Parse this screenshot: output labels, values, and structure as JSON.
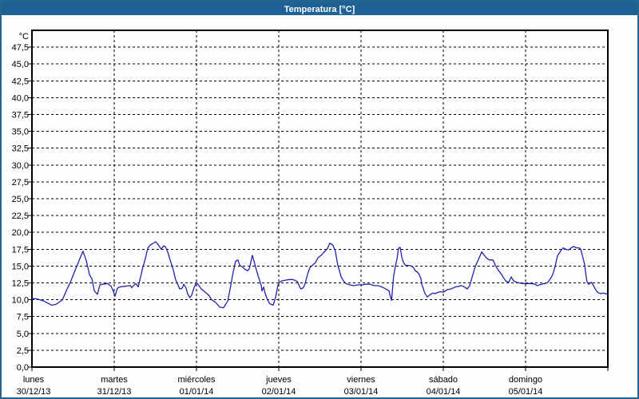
{
  "window": {
    "title": "Temperatura [°C]"
  },
  "colors": {
    "titlebar_bg": "#1e6295",
    "titlebar_text": "#ffffff",
    "window_border": "#266590",
    "background": "#fcfdfc",
    "plot_border": "#000000",
    "gridline": "#000000",
    "tick_label": "#000000",
    "line": "#2323aa"
  },
  "axes": {
    "y_unit_label": "°C",
    "y_max": 50,
    "y_tick_step": 2.5,
    "y_ticks": [
      {
        "v": 0,
        "label": "0,0"
      },
      {
        "v": 2.5,
        "label": "2,5"
      },
      {
        "v": 5,
        "label": "5,0"
      },
      {
        "v": 7.5,
        "label": "7,5"
      },
      {
        "v": 10,
        "label": "10,0"
      },
      {
        "v": 12.5,
        "label": "12,5"
      },
      {
        "v": 15,
        "label": "15,0"
      },
      {
        "v": 17.5,
        "label": "17,5"
      },
      {
        "v": 20,
        "label": "20,0"
      },
      {
        "v": 22.5,
        "label": "22,5"
      },
      {
        "v": 25,
        "label": "25,0"
      },
      {
        "v": 27.5,
        "label": "27,5"
      },
      {
        "v": 30,
        "label": "30,0"
      },
      {
        "v": 32.5,
        "label": "32,5"
      },
      {
        "v": 35,
        "label": "35,0"
      },
      {
        "v": 37.5,
        "label": "37,5"
      },
      {
        "v": 40,
        "label": "40,0"
      },
      {
        "v": 42.5,
        "label": "42,5"
      },
      {
        "v": 45,
        "label": "45,0"
      },
      {
        "v": 47.5,
        "label": "47,5"
      }
    ],
    "x_total_hours": 168,
    "x_days": [
      {
        "name": "lunes",
        "date": "30/12/13",
        "start_hour": 0
      },
      {
        "name": "martes",
        "date": "31/12/13",
        "start_hour": 24
      },
      {
        "name": "miércoles",
        "date": "01/01/14",
        "start_hour": 48
      },
      {
        "name": "jueves",
        "date": "02/01/14",
        "start_hour": 72
      },
      {
        "name": "viernes",
        "date": "03/01/14",
        "start_hour": 96
      },
      {
        "name": "sábado",
        "date": "04/01/14",
        "start_hour": 120
      },
      {
        "name": "domingo",
        "date": "05/01/14",
        "start_hour": 144
      }
    ]
  },
  "chart_data": {
    "type": "line",
    "title": "Temperatura [°C]",
    "ylabel": "°C",
    "ylim": [
      0,
      50
    ],
    "y_gridline_step": 2.5,
    "x_axis": "hours elapsed since lunes 30/12/13 00:00, one tick per day through domingo 05/01/14",
    "grid": true,
    "legend_position": "none",
    "series": [
      {
        "name": "Temperatura",
        "color": "#2323aa",
        "points": [
          [
            0,
            10.2
          ],
          [
            1.6,
            10.1
          ],
          [
            3.5,
            9.8
          ],
          [
            4.6,
            9.5
          ],
          [
            5.8,
            9.2
          ],
          [
            7,
            9.3
          ],
          [
            8.9,
            10.0
          ],
          [
            10,
            11.3
          ],
          [
            11.2,
            12.6
          ],
          [
            12.3,
            14.0
          ],
          [
            13.5,
            15.5
          ],
          [
            14.9,
            17.2
          ],
          [
            15.8,
            15.9
          ],
          [
            16.8,
            13.7
          ],
          [
            17.5,
            13.1
          ],
          [
            18.2,
            11.3
          ],
          [
            19.1,
            10.8
          ],
          [
            19.8,
            12.2
          ],
          [
            20.5,
            12.3
          ],
          [
            22.1,
            12.4
          ],
          [
            23.1,
            12.0
          ],
          [
            23.8,
            11.2
          ],
          [
            24.2,
            10.5
          ],
          [
            24.9,
            11.7
          ],
          [
            25.6,
            11.9
          ],
          [
            27.3,
            12.0
          ],
          [
            28.7,
            12.1
          ],
          [
            29.1,
            11.8
          ],
          [
            30.3,
            12.4
          ],
          [
            31,
            11.9
          ],
          [
            32.2,
            14.5
          ],
          [
            33.1,
            16.2
          ],
          [
            33.8,
            17.7
          ],
          [
            34.5,
            18.1
          ],
          [
            36.1,
            18.6
          ],
          [
            36.8,
            18.2
          ],
          [
            37.7,
            17.5
          ],
          [
            38.4,
            18.0
          ],
          [
            38.9,
            17.9
          ],
          [
            39.6,
            17.1
          ],
          [
            40.3,
            15.9
          ],
          [
            41.2,
            14.5
          ],
          [
            41.9,
            13.0
          ],
          [
            43.1,
            11.6
          ],
          [
            43.8,
            11.7
          ],
          [
            44.3,
            12.3
          ],
          [
            45,
            11.7
          ],
          [
            45.4,
            10.9
          ],
          [
            46.1,
            10.3
          ],
          [
            46.6,
            10.7
          ],
          [
            47.3,
            11.8
          ],
          [
            48,
            12.6
          ],
          [
            49.4,
            11.6
          ],
          [
            50.6,
            11.1
          ],
          [
            51.7,
            10.6
          ],
          [
            52.4,
            10.0
          ],
          [
            53.6,
            9.6
          ],
          [
            54.8,
            8.9
          ],
          [
            55.9,
            8.8
          ],
          [
            57.1,
            9.8
          ],
          [
            57.8,
            11.6
          ],
          [
            58.7,
            14.1
          ],
          [
            59.4,
            15.7
          ],
          [
            60.1,
            15.9
          ],
          [
            60.6,
            15.1
          ],
          [
            61.3,
            14.9
          ],
          [
            62.2,
            14.5
          ],
          [
            62.9,
            14.3
          ],
          [
            63.4,
            14.6
          ],
          [
            64.3,
            16.6
          ],
          [
            64.8,
            15.7
          ],
          [
            65.2,
            14.9
          ],
          [
            65.9,
            13.7
          ],
          [
            66.9,
            12.1
          ],
          [
            67.1,
            11.3
          ],
          [
            67.6,
            11.9
          ],
          [
            68,
            11.0
          ],
          [
            68.7,
            10.0
          ],
          [
            69.4,
            9.4
          ],
          [
            70.4,
            9.2
          ],
          [
            71.1,
            10.4
          ],
          [
            71.8,
            12.2
          ],
          [
            72.2,
            12.6
          ],
          [
            72.9,
            12.8
          ],
          [
            73.9,
            12.9
          ],
          [
            75,
            13.0
          ],
          [
            76.2,
            13.0
          ],
          [
            77.4,
            12.7
          ],
          [
            78.1,
            11.9
          ],
          [
            78.5,
            11.6
          ],
          [
            79.2,
            11.8
          ],
          [
            79.7,
            12.4
          ],
          [
            80.4,
            13.8
          ],
          [
            81.1,
            14.8
          ],
          [
            82,
            15.2
          ],
          [
            82.7,
            15.5
          ],
          [
            83.4,
            16.2
          ],
          [
            84.4,
            16.6
          ],
          [
            85.1,
            17.0
          ],
          [
            86.2,
            17.6
          ],
          [
            86.9,
            18.4
          ],
          [
            87.8,
            18.1
          ],
          [
            88.5,
            17.2
          ],
          [
            89.2,
            15.2
          ],
          [
            90.2,
            13.4
          ],
          [
            90.9,
            12.8
          ],
          [
            91.6,
            12.4
          ],
          [
            92.7,
            12.2
          ],
          [
            93.9,
            12.1
          ],
          [
            95.1,
            12.2
          ],
          [
            96.2,
            12.2
          ],
          [
            97.4,
            12.3
          ],
          [
            98.6,
            12.3
          ],
          [
            99.7,
            12.1
          ],
          [
            100.9,
            12.1
          ],
          [
            102.1,
            11.9
          ],
          [
            103.2,
            11.6
          ],
          [
            104.2,
            11.3
          ],
          [
            104.4,
            10.7
          ],
          [
            104.9,
            9.9
          ],
          [
            105.5,
            13.5
          ],
          [
            106,
            14.9
          ],
          [
            106.5,
            16.1
          ],
          [
            106.9,
            17.6
          ],
          [
            107.4,
            17.8
          ],
          [
            107.9,
            16.3
          ],
          [
            108.4,
            15.5
          ],
          [
            109,
            15.1
          ],
          [
            110,
            15.1
          ],
          [
            110.7,
            15.0
          ],
          [
            111.4,
            14.7
          ],
          [
            111.8,
            14.3
          ],
          [
            112.5,
            14.1
          ],
          [
            113,
            13.7
          ],
          [
            113.5,
            13.1
          ],
          [
            113.7,
            12.3
          ],
          [
            114.2,
            11.6
          ],
          [
            114.6,
            11.0
          ],
          [
            115.3,
            10.4
          ],
          [
            116,
            10.7
          ],
          [
            117,
            11.0
          ],
          [
            117.7,
            10.9
          ],
          [
            118.4,
            11.1
          ],
          [
            119.3,
            11.2
          ],
          [
            120,
            11.1
          ],
          [
            121.2,
            11.5
          ],
          [
            122.3,
            11.6
          ],
          [
            123.5,
            11.9
          ],
          [
            124.7,
            12.0
          ],
          [
            125.1,
            12.1
          ],
          [
            125.8,
            12.0
          ],
          [
            127,
            11.6
          ],
          [
            127.7,
            12.1
          ],
          [
            128.6,
            13.7
          ],
          [
            129.3,
            14.9
          ],
          [
            130,
            15.7
          ],
          [
            131.2,
            17.1
          ],
          [
            132.1,
            16.5
          ],
          [
            132.8,
            16.1
          ],
          [
            133.5,
            15.9
          ],
          [
            134.5,
            15.9
          ],
          [
            135.2,
            15.1
          ],
          [
            135.9,
            14.5
          ],
          [
            136.8,
            13.9
          ],
          [
            137.5,
            13.3
          ],
          [
            138.2,
            12.8
          ],
          [
            139.1,
            12.6
          ],
          [
            139.8,
            13.4
          ],
          [
            140.5,
            12.8
          ],
          [
            141.4,
            12.6
          ],
          [
            142.1,
            12.5
          ],
          [
            143.3,
            12.4
          ],
          [
            144.5,
            12.4
          ],
          [
            145.6,
            12.4
          ],
          [
            146.8,
            12.3
          ],
          [
            147.3,
            12.1
          ],
          [
            148.7,
            12.3
          ],
          [
            150.3,
            12.5
          ],
          [
            151,
            12.9
          ],
          [
            151.9,
            13.7
          ],
          [
            152.6,
            14.9
          ],
          [
            153.3,
            16.5
          ],
          [
            154.3,
            17.3
          ],
          [
            155,
            17.7
          ],
          [
            155.6,
            17.5
          ],
          [
            156.6,
            17.4
          ],
          [
            157.3,
            17.7
          ],
          [
            158,
            17.9
          ],
          [
            158.9,
            17.7
          ],
          [
            159.6,
            17.7
          ],
          [
            160.1,
            17.5
          ],
          [
            160.8,
            16.1
          ],
          [
            161.2,
            15.3
          ],
          [
            161.5,
            14.1
          ],
          [
            161.9,
            12.7
          ],
          [
            162.4,
            12.3
          ],
          [
            163.1,
            12.6
          ],
          [
            163.6,
            12.3
          ],
          [
            164.3,
            11.6
          ],
          [
            165,
            11.1
          ],
          [
            165.9,
            10.9
          ],
          [
            166.6,
            11.0
          ],
          [
            167.3,
            10.9
          ],
          [
            168,
            10.8
          ]
        ]
      }
    ]
  }
}
